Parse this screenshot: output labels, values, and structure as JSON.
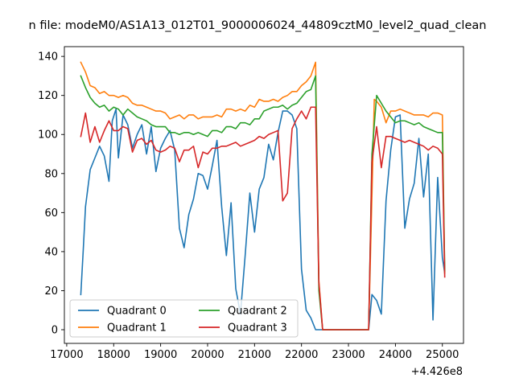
{
  "chart_data": {
    "type": "line",
    "title": "n file: modeM0/AS1A13_012T01_9000006024_44809cztM0_level2_quad_clean",
    "xlabel": "",
    "ylabel": "",
    "x_offset_label": "+4.426e8",
    "xlim": [
      16950,
      25450
    ],
    "ylim": [
      -7,
      145
    ],
    "x_ticks": [
      17000,
      18000,
      19000,
      20000,
      21000,
      22000,
      23000,
      24000,
      25000
    ],
    "x_tick_labels": [
      "17000",
      "18000",
      "19000",
      "20000",
      "21000",
      "22000",
      "23000",
      "24000",
      "25000"
    ],
    "y_ticks": [
      0,
      20,
      40,
      60,
      80,
      100,
      120,
      140
    ],
    "y_tick_labels": [
      "0",
      "20",
      "40",
      "60",
      "80",
      "100",
      "120",
      "140"
    ],
    "legend_position": "lower-left",
    "series": [
      {
        "name": "Quadrant 0",
        "color": "#1f77b4",
        "x": [
          17300,
          17350,
          17400,
          17500,
          17600,
          17700,
          17800,
          17900,
          17970,
          18050,
          18100,
          18200,
          18300,
          18400,
          18500,
          18600,
          18700,
          18800,
          18900,
          19000,
          19100,
          19200,
          19300,
          19400,
          19500,
          19600,
          19700,
          19800,
          19900,
          20000,
          20100,
          20200,
          20300,
          20400,
          20500,
          20600,
          20700,
          20800,
          20900,
          21000,
          21100,
          21200,
          21300,
          21400,
          21500,
          21600,
          21700,
          21800,
          21900,
          22000,
          22100,
          22200,
          22300,
          22370,
          22450,
          22550,
          23430,
          23500,
          23600,
          23700,
          23800,
          23900,
          24000,
          24100,
          24200,
          24300,
          24400,
          24500,
          24600,
          24700,
          24800,
          24900,
          25000,
          25050
        ],
        "y": [
          18,
          40,
          63,
          82,
          88,
          94,
          89,
          76,
          107,
          113,
          88,
          110,
          105,
          93,
          100,
          105,
          90,
          104,
          81,
          93,
          98,
          102,
          92,
          52,
          42,
          59,
          67,
          80,
          79,
          72,
          84,
          97,
          63,
          38,
          65,
          21,
          8,
          38,
          70,
          50,
          72,
          78,
          95,
          87,
          101,
          112,
          112,
          110,
          103,
          31,
          10,
          6,
          0,
          0,
          0,
          0,
          0,
          18,
          15,
          8,
          66,
          92,
          109,
          110,
          52,
          67,
          75,
          98,
          68,
          90,
          5,
          78,
          37,
          29
        ]
      },
      {
        "name": "Quadrant 1",
        "color": "#ff7f0e",
        "x": [
          17300,
          17400,
          17500,
          17600,
          17700,
          17800,
          17900,
          18000,
          18100,
          18200,
          18300,
          18400,
          18500,
          18600,
          18700,
          18800,
          18900,
          19000,
          19100,
          19200,
          19300,
          19400,
          19500,
          19600,
          19700,
          19800,
          19900,
          20000,
          20100,
          20200,
          20300,
          20400,
          20500,
          20600,
          20700,
          20800,
          20900,
          21000,
          21100,
          21200,
          21300,
          21400,
          21500,
          21600,
          21700,
          21800,
          21900,
          22000,
          22100,
          22200,
          22300,
          22370,
          22450,
          22550,
          23430,
          23550,
          23600,
          23700,
          23800,
          23900,
          24000,
          24100,
          24200,
          24300,
          24400,
          24500,
          24600,
          24700,
          24800,
          24900,
          25000,
          25050
        ],
        "y": [
          137,
          132,
          125,
          124,
          121,
          122,
          120,
          120,
          119,
          120,
          119,
          116,
          115,
          115,
          114,
          113,
          112,
          112,
          111,
          108,
          109,
          110,
          108,
          110,
          110,
          108,
          109,
          109,
          109,
          110,
          109,
          113,
          113,
          112,
          113,
          112,
          115,
          114,
          118,
          117,
          117,
          118,
          117,
          119,
          120,
          122,
          122,
          125,
          127,
          130,
          137,
          25,
          0,
          0,
          0,
          118,
          117,
          114,
          106,
          112,
          112,
          113,
          112,
          111,
          110,
          110,
          110,
          109,
          111,
          111,
          110,
          29
        ]
      },
      {
        "name": "Quadrant 2",
        "color": "#2ca02c",
        "x": [
          17300,
          17400,
          17500,
          17600,
          17700,
          17800,
          17900,
          18000,
          18100,
          18200,
          18300,
          18400,
          18500,
          18600,
          18700,
          18800,
          18900,
          19000,
          19100,
          19200,
          19300,
          19400,
          19500,
          19600,
          19700,
          19800,
          19900,
          20000,
          20100,
          20200,
          20300,
          20400,
          20500,
          20600,
          20700,
          20800,
          20900,
          21000,
          21100,
          21200,
          21300,
          21400,
          21500,
          21600,
          21700,
          21800,
          21900,
          22000,
          22100,
          22200,
          22300,
          22370,
          22450,
          22550,
          23430,
          23500,
          23600,
          23700,
          23800,
          23900,
          24000,
          24100,
          24200,
          24300,
          24400,
          24500,
          24600,
          24700,
          24800,
          24900,
          25000,
          25050
        ],
        "y": [
          130,
          124,
          119,
          116,
          114,
          115,
          112,
          114,
          113,
          110,
          113,
          111,
          109,
          108,
          107,
          105,
          104,
          104,
          104,
          101,
          101,
          100,
          101,
          101,
          100,
          101,
          100,
          99,
          102,
          102,
          101,
          104,
          104,
          103,
          106,
          106,
          105,
          108,
          108,
          112,
          113,
          114,
          114,
          115,
          113,
          115,
          116,
          119,
          122,
          123,
          130,
          20,
          0,
          0,
          0,
          90,
          120,
          116,
          112,
          109,
          106,
          107,
          107,
          106,
          105,
          106,
          104,
          103,
          102,
          101,
          101,
          30
        ]
      },
      {
        "name": "Quadrant 3",
        "color": "#d62728",
        "x": [
          17300,
          17400,
          17500,
          17600,
          17700,
          17800,
          17900,
          18000,
          18100,
          18200,
          18300,
          18400,
          18500,
          18600,
          18700,
          18800,
          18900,
          19000,
          19100,
          19200,
          19300,
          19400,
          19500,
          19600,
          19700,
          19800,
          19900,
          20000,
          20100,
          20200,
          20300,
          20400,
          20500,
          20600,
          20700,
          20800,
          20900,
          21000,
          21100,
          21200,
          21300,
          21400,
          21500,
          21600,
          21700,
          21800,
          21900,
          22000,
          22100,
          22200,
          22300,
          22370,
          22450,
          22550,
          23430,
          23500,
          23600,
          23700,
          23800,
          23900,
          24000,
          24100,
          24200,
          24300,
          24400,
          24500,
          24600,
          24700,
          24800,
          24900,
          25000,
          25050
        ],
        "y": [
          99,
          111,
          96,
          104,
          96,
          102,
          107,
          102,
          102,
          104,
          103,
          91,
          97,
          98,
          95,
          97,
          92,
          91,
          92,
          94,
          93,
          86,
          92,
          92,
          94,
          83,
          91,
          90,
          93,
          93,
          94,
          94,
          95,
          96,
          94,
          95,
          96,
          97,
          99,
          98,
          100,
          101,
          102,
          66,
          70,
          103,
          108,
          112,
          108,
          114,
          114,
          24,
          0,
          0,
          0,
          86,
          104,
          83,
          99,
          99,
          98,
          97,
          96,
          97,
          96,
          95,
          94,
          92,
          94,
          93,
          90,
          27
        ]
      }
    ]
  }
}
